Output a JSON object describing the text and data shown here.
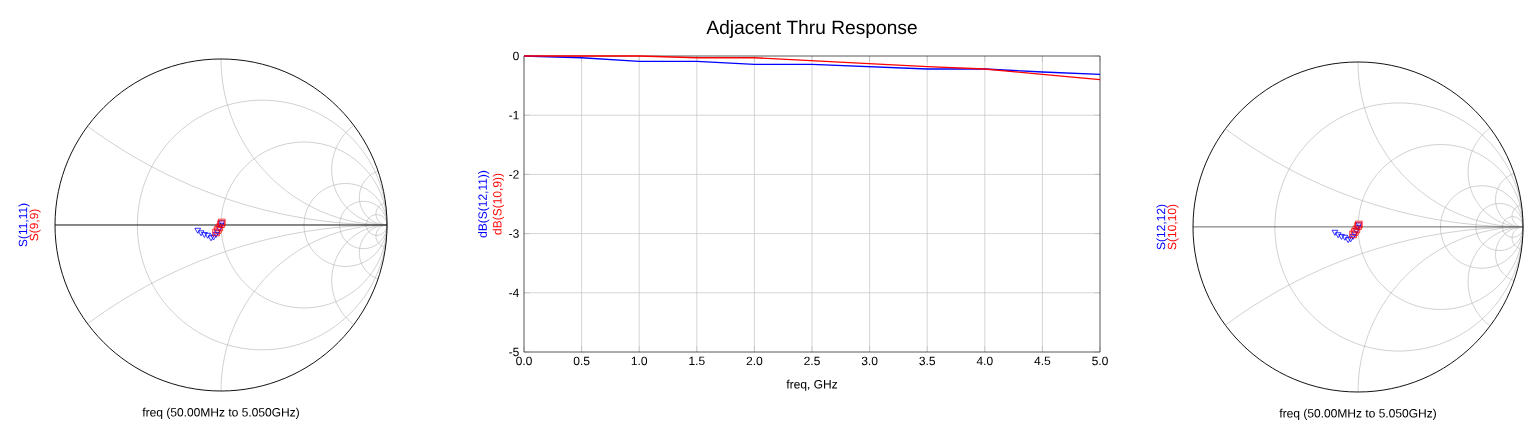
{
  "chart_data": [
    {
      "type": "other",
      "xlabel": "freq (50.00MHz to 5.050GHz)",
      "annotations": [
        "S(11,11)",
        "S(9,9)"
      ],
      "colors": [
        "#0000ff",
        "#ff0000"
      ]
    },
    {
      "type": "line",
      "title": "Adjacent Thru Response",
      "xlabel": "freq, GHz",
      "xlim": [
        0,
        5
      ],
      "ylim": [
        -5,
        0
      ],
      "grid": true,
      "marker": "none",
      "xticks": [
        {
          "value": 0,
          "label": "0.0"
        },
        {
          "value": 0.5,
          "label": "0.5"
        },
        {
          "value": 1,
          "label": "1.0"
        },
        {
          "value": 1.5,
          "label": "1.5"
        },
        {
          "value": 2,
          "label": "2.0"
        },
        {
          "value": 2.5,
          "label": "2.5"
        },
        {
          "value": 3,
          "label": "3.0"
        },
        {
          "value": 3.5,
          "label": "3.5"
        },
        {
          "value": 4,
          "label": "4.0"
        },
        {
          "value": 4.5,
          "label": "4.5"
        },
        {
          "value": 5,
          "label": "5.0"
        }
      ],
      "yticks": [
        -5,
        -4,
        -3,
        -2,
        -1,
        0
      ],
      "x": [
        0,
        0.5,
        1,
        1.5,
        2,
        2.5,
        3,
        3.5,
        4,
        4.5,
        5
      ],
      "series": [
        {
          "name": "dB(S(12,11))",
          "color": "#0000ff",
          "values": [
            0,
            -0.03,
            -0.09,
            -0.09,
            -0.14,
            -0.14,
            -0.18,
            -0.22,
            -0.22,
            -0.27,
            -0.31
          ]
        },
        {
          "name": "dB(S(10,9))",
          "color": "#ff0000",
          "values": [
            0,
            0,
            0,
            -0.03,
            -0.03,
            -0.08,
            -0.13,
            -0.18,
            -0.22,
            -0.31,
            -0.4
          ]
        }
      ]
    },
    {
      "type": "other",
      "xlabel": "freq (50.00MHz to 5.050GHz)",
      "annotations": [
        "S(12,12)",
        "S(10,10)"
      ],
      "colors": [
        "#0000ff",
        "#ff0000"
      ]
    }
  ]
}
